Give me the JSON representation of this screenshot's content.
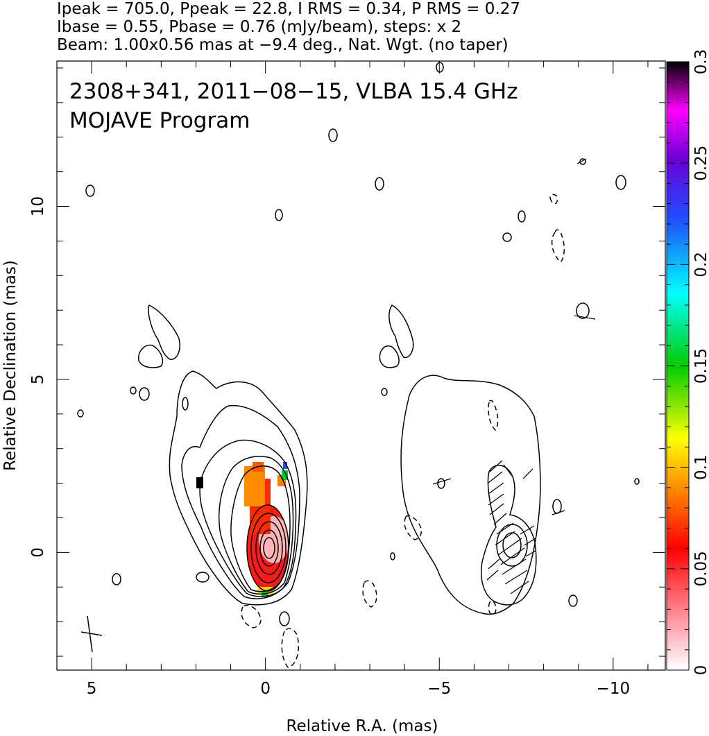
{
  "header": {
    "line1": "Ipeak = 705.0, Ppeak = 22.8, I RMS = 0.34, P RMS = 0.27",
    "line2": "Ibase = 0.55, Pbase = 0.76 (mJy/beam), steps: x 2",
    "line3": "Beam: 1.00x0.56 mas at −9.4 deg., Nat. Wgt. (no taper)"
  },
  "annotation": {
    "line1": "2308+341, 2011−08−15, VLBA 15.4 GHz",
    "line2": "MOJAVE Program"
  },
  "chart_data": {
    "type": "heatmap",
    "title": "2308+341, 2011-08-15, VLBA 15.4 GHz",
    "xlabel": "Relative R.A. (mas)",
    "ylabel": "Relative Declination (mas)",
    "xlim": [
      6.0,
      -11.5
    ],
    "ylim": [
      -3.4,
      14.2
    ],
    "x_ticks": [
      {
        "value": 5,
        "label": "5"
      },
      {
        "value": 0,
        "label": "0"
      },
      {
        "value": -5,
        "label": "−5"
      },
      {
        "value": -10,
        "label": "−10"
      }
    ],
    "y_ticks": [
      {
        "value": 0,
        "label": "0"
      },
      {
        "value": 5,
        "label": "5"
      },
      {
        "value": 10,
        "label": "10"
      }
    ],
    "colorbar": {
      "range": [
        0,
        0.3
      ],
      "ticks": [
        {
          "value": 0,
          "label": "0"
        },
        {
          "value": 0.05,
          "label": "0.05"
        },
        {
          "value": 0.1,
          "label": "0.1"
        },
        {
          "value": 0.15,
          "label": "0.15"
        },
        {
          "value": 0.2,
          "label": "0.2"
        },
        {
          "value": 0.25,
          "label": "0.25"
        },
        {
          "value": 0.3,
          "label": "0.3"
        }
      ],
      "colors": [
        "#ffffff",
        "#ff9aa6",
        "#ff0000",
        "#ff8c00",
        "#ffff00",
        "#00cc00",
        "#00ffff",
        "#1e50ff",
        "#6a00d8",
        "#ff00ff",
        "#000000"
      ]
    },
    "intensity_peak": 705.0,
    "polarization_peak": 22.8,
    "intensity_rms": 0.34,
    "polarization_rms": 0.27,
    "intensity_base": 0.55,
    "polarization_base": 0.76,
    "contour_step_factor": 2,
    "beam": {
      "major": 1.0,
      "minor": 0.56,
      "pa": -9.4
    },
    "weighting": "Natural (no taper)",
    "fractional_polarization_regions": [
      {
        "ra": 0.0,
        "dec": 0.3,
        "value": 0.03
      },
      {
        "ra": 0.2,
        "dec": 1.9,
        "value": 0.07
      },
      {
        "ra": -0.4,
        "dec": 2.0,
        "value": 0.1
      },
      {
        "ra": -0.45,
        "dec": 2.4,
        "value": 0.2
      },
      {
        "ra": 2.0,
        "dec": 1.9,
        "value": 0.3
      }
    ]
  }
}
